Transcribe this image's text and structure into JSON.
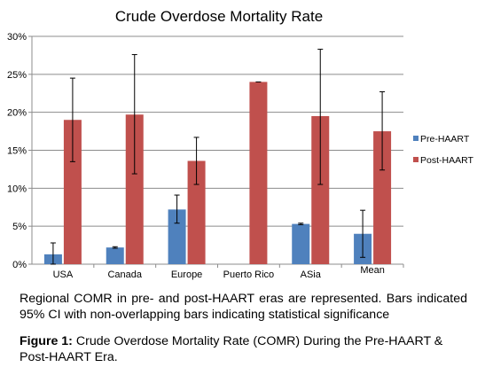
{
  "chart_data": {
    "type": "bar",
    "title": "Crude Overdose Mortality Rate",
    "xlabel": "",
    "ylabel": "",
    "categories": [
      "USA",
      "Canada",
      "Europe",
      "Puerto Rico",
      "ASia",
      "Mean"
    ],
    "ylim": [
      0,
      30
    ],
    "y_ticks": [
      "0%",
      "5%",
      "10%",
      "15%",
      "20%",
      "25%",
      "30%"
    ],
    "y_tick_values": [
      0,
      5,
      10,
      15,
      20,
      25,
      30
    ],
    "grid": true,
    "legend_position": "right",
    "series": [
      {
        "name": "Pre-HAART",
        "color": "#4f81bd",
        "values": [
          1.3,
          2.2,
          7.2,
          null,
          5.3,
          4.0
        ],
        "error_low": [
          0.0,
          2.1,
          5.4,
          null,
          5.2,
          0.9
        ],
        "error_high": [
          2.8,
          2.3,
          9.1,
          null,
          5.4,
          7.1
        ]
      },
      {
        "name": "Post-HAART",
        "color": "#c0504d",
        "values": [
          19.0,
          19.7,
          13.6,
          24.0,
          19.5,
          17.5
        ],
        "error_low": [
          13.5,
          11.9,
          10.5,
          24.0,
          10.5,
          12.4
        ],
        "error_high": [
          24.5,
          27.6,
          16.7,
          24.0,
          28.3,
          22.7
        ]
      }
    ]
  },
  "note": "Regional COMR in pre- and post-HAART eras are represented. Bars indicated 95% CI with non-overlapping bars indicating statistical significance",
  "caption": {
    "label": "Figure 1:",
    "text": " Crude Overdose Mortality Rate (COMR) During the Pre-HAART & Post-HAART Era."
  }
}
